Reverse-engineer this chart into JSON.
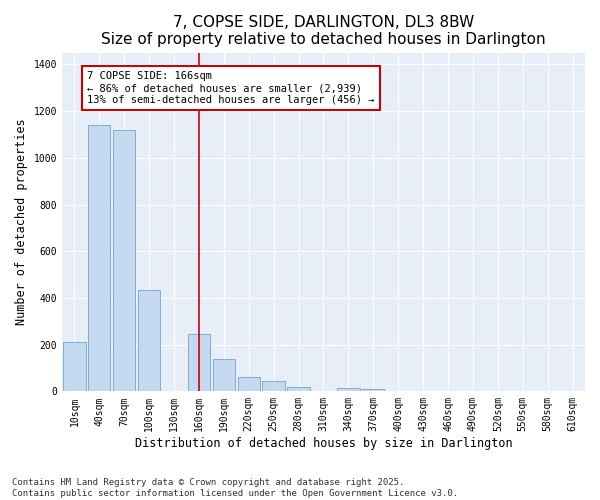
{
  "title": "7, COPSE SIDE, DARLINGTON, DL3 8BW",
  "subtitle": "Size of property relative to detached houses in Darlington",
  "xlabel": "Distribution of detached houses by size in Darlington",
  "ylabel": "Number of detached properties",
  "categories": [
    "10sqm",
    "40sqm",
    "70sqm",
    "100sqm",
    "130sqm",
    "160sqm",
    "190sqm",
    "220sqm",
    "250sqm",
    "280sqm",
    "310sqm",
    "340sqm",
    "370sqm",
    "400sqm",
    "430sqm",
    "460sqm",
    "490sqm",
    "520sqm",
    "550sqm",
    "580sqm",
    "610sqm"
  ],
  "values": [
    210,
    1140,
    1120,
    435,
    0,
    245,
    140,
    60,
    45,
    20,
    0,
    15,
    10,
    0,
    0,
    0,
    0,
    0,
    0,
    0,
    0
  ],
  "bar_color": "#c5d9f0",
  "bar_edge_color": "#7aafd4",
  "vline_x": 5,
  "vline_color": "#cc0000",
  "annotation_text": "7 COPSE SIDE: 166sqm\n← 86% of detached houses are smaller (2,939)\n13% of semi-detached houses are larger (456) →",
  "annotation_box_color": "#cc0000",
  "ylim": [
    0,
    1450
  ],
  "yticks": [
    0,
    200,
    400,
    600,
    800,
    1000,
    1200,
    1400
  ],
  "bg_color": "#ffffff",
  "plot_bg_color": "#e8eef8",
  "grid_color": "#ffffff",
  "footer_line1": "Contains HM Land Registry data © Crown copyright and database right 2025.",
  "footer_line2": "Contains public sector information licensed under the Open Government Licence v3.0.",
  "title_fontsize": 11,
  "subtitle_fontsize": 9.5,
  "axis_label_fontsize": 8.5,
  "tick_fontsize": 7,
  "annotation_fontsize": 7.5,
  "footer_fontsize": 6.5
}
